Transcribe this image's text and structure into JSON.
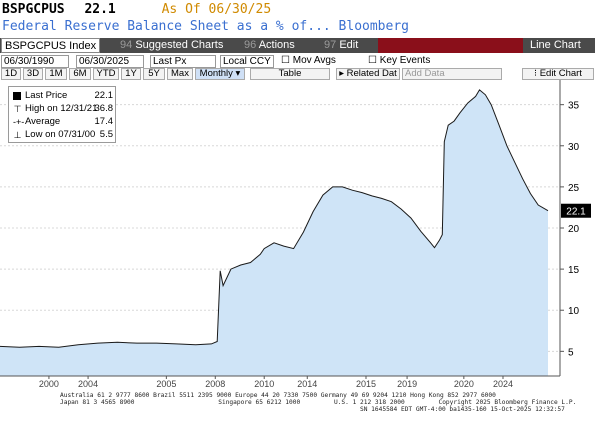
{
  "header": {
    "ticker": "BSPGCPUS",
    "last_value": "22.1",
    "as_of": "As Of 06/30/25",
    "title": "Federal Reserve Balance Sheet as a % of... Bloomberg"
  },
  "toolbar": {
    "security": "BSPGCPUS Index",
    "suggested_num": "94",
    "suggested_label": "Suggested Charts",
    "actions_num": "96",
    "actions_label": "Actions",
    "edit_num": "97",
    "edit_label": "Edit",
    "view_label": "Line Chart"
  },
  "controls": {
    "start_date": "06/30/1990",
    "end_date": "06/30/2025",
    "field": "Last Px",
    "currency": "Local CCY",
    "mov_avgs": "Mov Avgs",
    "key_events": "Key Events",
    "ranges": [
      "1D",
      "3D",
      "1M",
      "6M",
      "YTD",
      "1Y",
      "5Y",
      "Max"
    ],
    "period": "Monthly",
    "table": "Table",
    "related": "Related Dat",
    "add_data": "Add Data",
    "edit_chart": "Edit Chart"
  },
  "legend": {
    "last_label": "Last Price",
    "last_value": "22.1",
    "high_label": "High on 12/31/21",
    "high_value": "36.8",
    "avg_label": "Average",
    "avg_value": "17.4",
    "low_label": "Low on 07/31/00",
    "low_value": "5.5"
  },
  "footer": {
    "line1": "Australia 61 2 9777 8600 Brazil 5511 2395 9000 Europe 44 20 7330 7500 Germany 49 69 9204 1210 Hong Kong 852 2977 6000",
    "line2a": "Japan 81 3 4565 8900",
    "line2b": "Singapore 65 6212 1000",
    "line2c": "U.S. 1 212 318 2000",
    "line2d": "Copyright 2025 Bloomberg Finance L.P.",
    "line3": "SN 1645584 EDT  GMT-4:00 ba1435-160 15-Oct-2025 12:32:57"
  },
  "chart_data": {
    "type": "area",
    "colors": {
      "fill": "#cfe4f7",
      "line": "#1a1a1a",
      "tag_bg": "#000000",
      "tag_text": "#ffffff"
    },
    "last_tag": "22.1",
    "ylim": [
      2,
      38
    ],
    "yticks": [
      5,
      10,
      15,
      20,
      25,
      30,
      35
    ],
    "xlim": [
      1997.5,
      2025.5
    ],
    "xtick_labels": [
      {
        "x": 2000,
        "label": "2000"
      },
      {
        "x": 2002,
        "label": "2004"
      },
      {
        "x": 2006,
        "label": "2005"
      },
      {
        "x": 2008.5,
        "label": "2008"
      },
      {
        "x": 2011,
        "label": "2010"
      },
      {
        "x": 2013.2,
        "label": "2014"
      },
      {
        "x": 2016.2,
        "label": "2015"
      },
      {
        "x": 2018.3,
        "label": "2019"
      },
      {
        "x": 2021.2,
        "label": "2020"
      },
      {
        "x": 2023.2,
        "label": "2024"
      }
    ],
    "series": [
      {
        "points": [
          [
            1997.5,
            5.6
          ],
          [
            1998.5,
            5.5
          ],
          [
            1999.5,
            5.6
          ],
          [
            2000.5,
            5.5
          ],
          [
            2001.5,
            5.8
          ],
          [
            2002.5,
            6.0
          ],
          [
            2003.5,
            6.1
          ],
          [
            2004.5,
            6.0
          ],
          [
            2005.5,
            6.0
          ],
          [
            2006.5,
            5.9
          ],
          [
            2007.5,
            5.8
          ],
          [
            2008.3,
            5.9
          ],
          [
            2008.6,
            6.2
          ],
          [
            2008.75,
            14.8
          ],
          [
            2008.9,
            13.0
          ],
          [
            2009.3,
            15.0
          ],
          [
            2009.8,
            15.5
          ],
          [
            2010.3,
            15.8
          ],
          [
            2010.8,
            16.8
          ],
          [
            2011.0,
            17.5
          ],
          [
            2011.5,
            18.2
          ],
          [
            2012.0,
            17.8
          ],
          [
            2012.5,
            17.5
          ],
          [
            2013.0,
            19.5
          ],
          [
            2013.5,
            22.0
          ],
          [
            2014.0,
            24.0
          ],
          [
            2014.5,
            25.0
          ],
          [
            2015.0,
            25.0
          ],
          [
            2015.5,
            24.6
          ],
          [
            2016.0,
            24.3
          ],
          [
            2016.5,
            23.9
          ],
          [
            2017.0,
            23.6
          ],
          [
            2017.5,
            23.2
          ],
          [
            2018.0,
            22.3
          ],
          [
            2018.5,
            21.2
          ],
          [
            2019.0,
            19.6
          ],
          [
            2019.5,
            18.2
          ],
          [
            2019.7,
            17.6
          ],
          [
            2019.95,
            18.5
          ],
          [
            2020.1,
            19.2
          ],
          [
            2020.2,
            30.5
          ],
          [
            2020.4,
            32.5
          ],
          [
            2020.7,
            33.0
          ],
          [
            2021.0,
            34.0
          ],
          [
            2021.4,
            35.2
          ],
          [
            2021.8,
            36.0
          ],
          [
            2022.0,
            36.8
          ],
          [
            2022.3,
            36.2
          ],
          [
            2022.6,
            35.0
          ],
          [
            2023.0,
            32.5
          ],
          [
            2023.4,
            30.0
          ],
          [
            2023.8,
            28.0
          ],
          [
            2024.2,
            26.0
          ],
          [
            2024.6,
            24.2
          ],
          [
            2025.0,
            22.8
          ],
          [
            2025.5,
            22.1
          ]
        ]
      }
    ]
  }
}
